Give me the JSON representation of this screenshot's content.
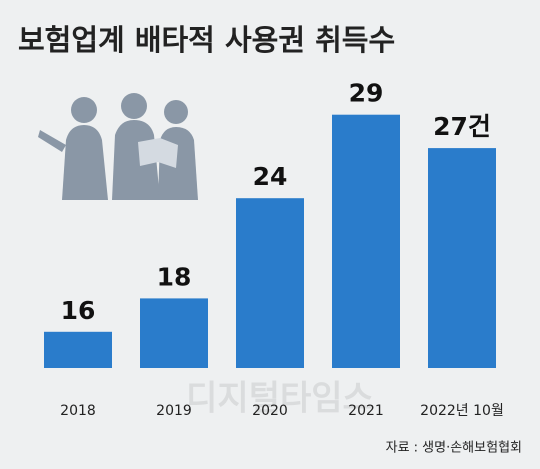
{
  "chart_data": {
    "type": "bar",
    "title": "보험업계 배타적 사용권 취득수",
    "categories": [
      "2018",
      "2019",
      "2020",
      "2021",
      "2022년 10월"
    ],
    "values": [
      16,
      18,
      24,
      29,
      27
    ],
    "value_labels": [
      "16",
      "18",
      "24",
      "29",
      "27건"
    ],
    "color": "#2a7ccb",
    "source": "자료 : 생명·손해보험협회",
    "watermark": "디지털타임스"
  }
}
